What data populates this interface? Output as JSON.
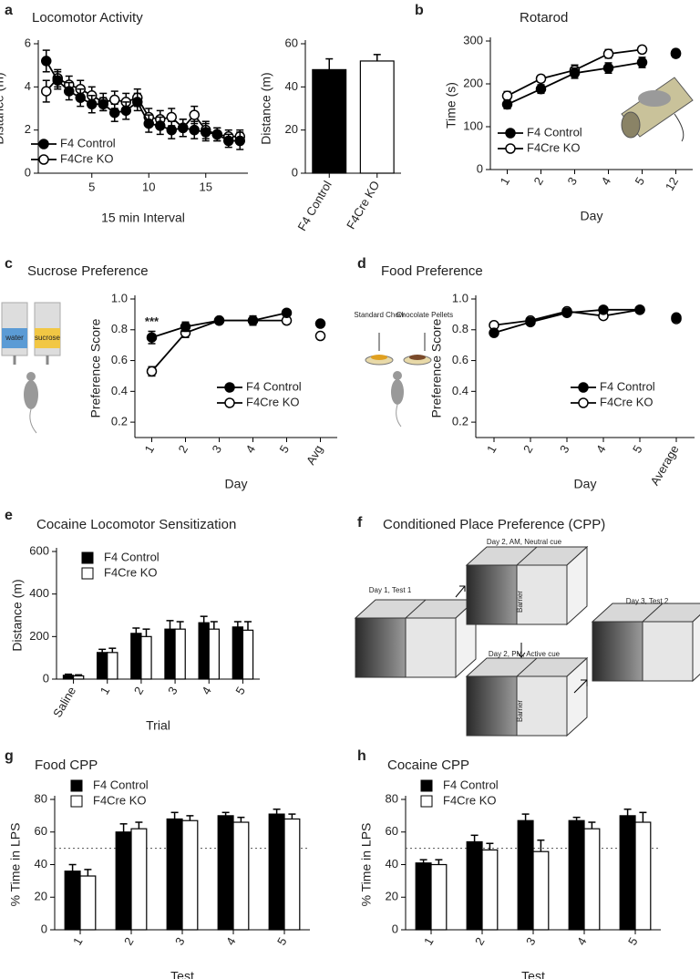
{
  "chart_data": [
    {
      "type": "line",
      "panel": "a",
      "title": "Locomotor Activity",
      "xlabel": "15 min Interval",
      "ylabel": "Distance (m)",
      "x": [
        1,
        2,
        3,
        4,
        5,
        6,
        7,
        8,
        9,
        10,
        11,
        12,
        13,
        14,
        15,
        16,
        17,
        18
      ],
      "xlim": [
        0.3,
        18.7
      ],
      "xticks": [
        5,
        10,
        15
      ],
      "ylim": [
        0,
        6
      ],
      "yticks": [
        0,
        2,
        4,
        6
      ],
      "series": [
        {
          "name": "F4 Control",
          "color": "#000000",
          "values": [
            5.2,
            4.3,
            3.8,
            3.5,
            3.2,
            3.2,
            2.8,
            2.9,
            3.3,
            2.3,
            2.2,
            2.0,
            2.1,
            2.0,
            1.9,
            1.8,
            1.5,
            1.5
          ],
          "errors": [
            0.5,
            0.4,
            0.4,
            0.4,
            0.4,
            0.3,
            0.4,
            0.4,
            0.4,
            0.4,
            0.4,
            0.4,
            0.4,
            0.4,
            0.4,
            0.3,
            0.3,
            0.4
          ]
        },
        {
          "name": "F4Cre KO",
          "color": "#ffffff",
          "values": [
            3.8,
            4.4,
            4.1,
            3.9,
            3.6,
            3.3,
            3.4,
            3.3,
            3.5,
            2.6,
            2.5,
            2.6,
            2.1,
            2.7,
            2.0,
            1.8,
            1.7,
            1.7
          ],
          "errors": [
            0.5,
            0.4,
            0.4,
            0.4,
            0.4,
            0.4,
            0.4,
            0.4,
            0.4,
            0.4,
            0.4,
            0.4,
            0.4,
            0.4,
            0.4,
            0.3,
            0.3,
            0.3
          ]
        }
      ]
    },
    {
      "type": "bar",
      "ylabel": "Distance (m)",
      "categories": [
        "F4 Control",
        "F4Cre KO"
      ],
      "values": [
        48,
        52
      ],
      "errors": [
        5,
        3
      ],
      "colors": [
        "#000000",
        "#ffffff"
      ],
      "ylim": [
        0,
        60
      ],
      "yticks": [
        0,
        20,
        40,
        60
      ],
      "xtick_rotation": -60
    },
    {
      "type": "line",
      "panel": "b",
      "title": "Rotarod",
      "xlabel": "Day",
      "ylabel": "Time (s)",
      "categories": [
        "1",
        "2",
        "3",
        "4",
        "5",
        "12"
      ],
      "last_point_unlinked": true,
      "xtick_rotation": -60,
      "ylim": [
        0,
        300
      ],
      "yticks": [
        0,
        100,
        200,
        300
      ],
      "series": [
        {
          "name": "F4 Control",
          "color": "#000000",
          "values": [
            152,
            188,
            225,
            237,
            250,
            270
          ],
          "errors": [
            10,
            10,
            12,
            12,
            12,
            8
          ]
        },
        {
          "name": "F4Cre KO",
          "color": "#ffffff",
          "values": [
            172,
            212,
            232,
            270,
            280,
            272
          ],
          "errors": [
            10,
            8,
            12,
            10,
            8,
            8
          ]
        }
      ]
    },
    {
      "type": "line",
      "panel": "c",
      "title": "Sucrose Preference",
      "xlabel": "Day",
      "ylabel": "Preference Score",
      "categories": [
        "1",
        "2",
        "3",
        "4",
        "5",
        "Avg"
      ],
      "last_point_unlinked": true,
      "xtick_rotation": -60,
      "annotation": "***",
      "ylim": [
        0.1,
        1
      ],
      "yticks": [
        0.2,
        0.4,
        0.6,
        0.8,
        {
          "value": 1,
          "label": "1.0"
        }
      ],
      "series": [
        {
          "name": "F4 Control",
          "color": "#000000",
          "values": [
            0.75,
            0.82,
            0.86,
            0.86,
            0.91,
            0.84
          ],
          "errors": [
            0.04,
            0.03,
            0.02,
            0.02,
            0.02,
            0.02
          ]
        },
        {
          "name": "F4Cre KO",
          "color": "#ffffff",
          "values": [
            0.53,
            0.78,
            0.86,
            0.86,
            0.86,
            0.76
          ],
          "errors": [
            0.03,
            0.03,
            0.02,
            0.03,
            0.02,
            0.02
          ]
        }
      ]
    },
    {
      "type": "line",
      "panel": "d",
      "title": "Food Preference",
      "xlabel": "Day",
      "ylabel": "Preference Score",
      "categories": [
        "1",
        "2",
        "3",
        "4",
        "5",
        "Average"
      ],
      "last_point_unlinked": true,
      "xtick_rotation": -60,
      "ylim": [
        0.1,
        1
      ],
      "yticks": [
        0.2,
        0.4,
        0.6,
        0.8,
        {
          "value": 1,
          "label": "1.0"
        }
      ],
      "series": [
        {
          "name": "F4 Control",
          "color": "#000000",
          "values": [
            0.78,
            0.85,
            0.91,
            0.93,
            0.93,
            0.88
          ],
          "errors": [
            0.02,
            0.02,
            0.02,
            0.02,
            0.02,
            0.02
          ]
        },
        {
          "name": "F4Cre KO",
          "color": "#ffffff",
          "values": [
            0.83,
            0.86,
            0.92,
            0.89,
            0.93,
            0.87
          ],
          "errors": [
            0.02,
            0.02,
            0.02,
            0.02,
            0.02,
            0.02
          ]
        }
      ]
    },
    {
      "type": "bar",
      "panel": "e",
      "title": "Cocaine Locomotor Sensitization",
      "xlabel": "Trial",
      "ylabel": "Distance (m)",
      "categories": [
        "Saline",
        "1",
        "2",
        "3",
        "4",
        "5"
      ],
      "xtick_rotation": -60,
      "ylim": [
        0,
        600
      ],
      "yticks": [
        0,
        200,
        400,
        600
      ],
      "series": [
        {
          "name": "F4 Control",
          "color": "#000000",
          "values": [
            18,
            125,
            215,
            235,
            265,
            245
          ],
          "errors": [
            5,
            15,
            25,
            40,
            30,
            25
          ]
        },
        {
          "name": "F4Cre KO",
          "color": "#ffffff",
          "values": [
            15,
            125,
            200,
            235,
            235,
            230
          ],
          "errors": [
            5,
            20,
            35,
            35,
            35,
            40
          ]
        }
      ]
    },
    {
      "type": "bar",
      "panel": "g",
      "title": "Food CPP",
      "xlabel": "Test",
      "ylabel": "% Time in LPS",
      "categories": [
        "1",
        "2",
        "3",
        "4",
        "5"
      ],
      "xtick_rotation": -60,
      "hline": 50,
      "ylim": [
        0,
        80
      ],
      "yticks": [
        0,
        20,
        40,
        60,
        80
      ],
      "series": [
        {
          "name": "F4 Control",
          "color": "#000000",
          "values": [
            36,
            60,
            68,
            70,
            71
          ],
          "errors": [
            4,
            5,
            4,
            2,
            3
          ]
        },
        {
          "name": "F4Cre KO",
          "color": "#ffffff",
          "values": [
            33,
            62,
            67,
            66,
            68
          ],
          "errors": [
            4,
            4,
            3,
            3,
            3
          ]
        }
      ]
    },
    {
      "type": "bar",
      "panel": "h",
      "title": "Cocaine CPP",
      "xlabel": "Test",
      "ylabel": "% Time in LPS",
      "categories": [
        "1",
        "2",
        "3",
        "4",
        "5"
      ],
      "xtick_rotation": -60,
      "hline": 50,
      "ylim": [
        0,
        80
      ],
      "yticks": [
        0,
        20,
        40,
        60,
        80
      ],
      "series": [
        {
          "name": "F4 Control",
          "color": "#000000",
          "values": [
            41,
            54,
            67,
            67,
            70
          ],
          "errors": [
            2,
            4,
            4,
            2,
            4
          ]
        },
        {
          "name": "F4Cre KO",
          "color": "#ffffff",
          "values": [
            40,
            49,
            48,
            62,
            66
          ],
          "errors": [
            3,
            4,
            7,
            4,
            6
          ]
        }
      ]
    }
  ],
  "diagram": {
    "panel": "f",
    "title": "Conditioned Place Preference (CPP)",
    "boxes": [
      "Day 1, Test 1",
      "Day 2, AM, Neutral cue",
      "Day 2, PM, Active cue",
      "Day 3, Test 2"
    ],
    "barrier": "Barrier"
  },
  "illustrations": {
    "bottles": [
      "water",
      "sucrose"
    ],
    "foods": [
      "Standard Chow",
      "Chocolate Pellets"
    ]
  }
}
